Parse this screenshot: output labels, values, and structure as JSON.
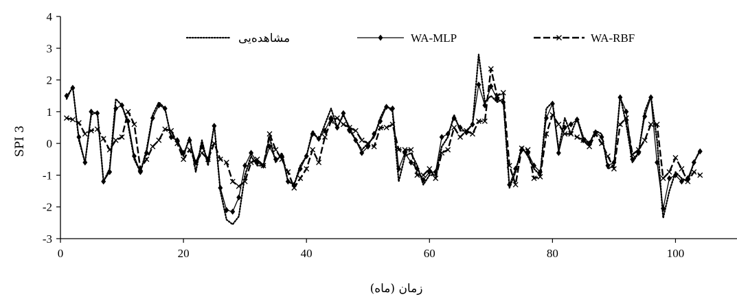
{
  "chart_data": {
    "type": "line",
    "title": "",
    "xlabel": "زمان (ماه)",
    "ylabel": "SPI 3",
    "xlim": [
      0,
      110
    ],
    "ylim": [
      -3,
      4
    ],
    "xticks": [
      0,
      20,
      40,
      60,
      80,
      100
    ],
    "yticks": [
      -3,
      -2,
      -1,
      0,
      1,
      2,
      3,
      4
    ],
    "grid": false,
    "legend_position": "top-center",
    "series": [
      {
        "name": "مشاهده‌یی",
        "style": "dotted",
        "marker": "none",
        "color": "#000000",
        "x": [
          1,
          2,
          3,
          4,
          5,
          6,
          7,
          8,
          9,
          10,
          11,
          12,
          13,
          14,
          15,
          16,
          17,
          18,
          19,
          20,
          21,
          22,
          23,
          24,
          25,
          26,
          27,
          28,
          29,
          30,
          31,
          32,
          33,
          34,
          35,
          36,
          37,
          38,
          39,
          40,
          41,
          42,
          43,
          44,
          45,
          46,
          47,
          48,
          49,
          50,
          51,
          52,
          53,
          54,
          55,
          56,
          57,
          58,
          59,
          60,
          61,
          62,
          63,
          64,
          65,
          66,
          67,
          68,
          69,
          70,
          71,
          72,
          73,
          74,
          75,
          76,
          77,
          78,
          79,
          80,
          81,
          82,
          83,
          84,
          85,
          86,
          87,
          88,
          89,
          90,
          91,
          92,
          93,
          94,
          95,
          96,
          97,
          98,
          99,
          100,
          101,
          102,
          103,
          104
        ],
        "values": [
          1.4,
          1.8,
          0.1,
          -0.6,
          0.9,
          1.0,
          -1.2,
          -0.8,
          1.4,
          1.2,
          0.6,
          -0.5,
          -0.9,
          -0.2,
          0.9,
          1.3,
          1.1,
          0.2,
          0.1,
          -0.4,
          0.2,
          -0.9,
          0.1,
          -0.7,
          0.6,
          -1.5,
          -2.4,
          -2.55,
          -2.3,
          -1.0,
          -0.4,
          -0.7,
          -0.7,
          0.2,
          -0.6,
          -0.3,
          -1.2,
          -1.3,
          -0.7,
          -0.4,
          0.4,
          0.1,
          0.6,
          1.1,
          0.5,
          0.9,
          0.5,
          0.1,
          -0.2,
          0.0,
          0.2,
          0.8,
          1.2,
          1.0,
          -1.2,
          -0.4,
          -0.3,
          -0.7,
          -1.3,
          -1.0,
          -1.0,
          -0.1,
          0.2,
          0.9,
          0.4,
          0.4,
          0.6,
          2.8,
          1.3,
          1.5,
          1.3,
          1.4,
          -1.4,
          -0.9,
          -0.1,
          -0.4,
          -0.8,
          -1.0,
          1.1,
          1.3,
          -0.2,
          0.8,
          0.3,
          0.8,
          0.2,
          0.0,
          0.4,
          0.3,
          -0.8,
          -0.7,
          1.5,
          0.6,
          -0.6,
          -0.3,
          1.0,
          1.5,
          0.1,
          -2.35,
          -1.5,
          -0.9,
          -1.1,
          -1.2,
          -0.6,
          -0.2
        ]
      },
      {
        "name": "WA-MLP",
        "style": "solid",
        "marker": "diamond",
        "color": "#000000",
        "x": [
          1,
          2,
          3,
          4,
          5,
          6,
          7,
          8,
          9,
          10,
          11,
          12,
          13,
          14,
          15,
          16,
          17,
          18,
          19,
          20,
          21,
          22,
          23,
          24,
          25,
          26,
          27,
          28,
          29,
          30,
          31,
          32,
          33,
          34,
          35,
          36,
          37,
          38,
          39,
          40,
          41,
          42,
          43,
          44,
          45,
          46,
          47,
          48,
          49,
          50,
          51,
          52,
          53,
          54,
          55,
          56,
          57,
          58,
          59,
          60,
          61,
          62,
          63,
          64,
          65,
          66,
          67,
          68,
          69,
          70,
          71,
          72,
          73,
          74,
          75,
          76,
          77,
          78,
          79,
          80,
          81,
          82,
          83,
          84,
          85,
          86,
          87,
          88,
          89,
          90,
          91,
          92,
          93,
          94,
          95,
          96,
          97,
          98,
          99,
          100,
          101,
          102,
          103,
          104
        ],
        "values": [
          1.5,
          1.75,
          0.2,
          -0.6,
          1.0,
          0.95,
          -1.2,
          -0.9,
          1.1,
          1.2,
          0.7,
          -0.4,
          -0.9,
          -0.3,
          0.8,
          1.2,
          1.1,
          0.2,
          0.1,
          -0.3,
          0.1,
          -0.6,
          -0.1,
          -0.5,
          0.55,
          -1.4,
          -2.1,
          -2.15,
          -1.7,
          -0.7,
          -0.3,
          -0.6,
          -0.7,
          -0.1,
          -0.5,
          -0.4,
          -1.2,
          -1.3,
          -0.8,
          -0.4,
          0.3,
          0.15,
          0.4,
          0.8,
          0.5,
          0.95,
          0.4,
          0.1,
          -0.3,
          -0.1,
          0.3,
          0.7,
          1.15,
          1.1,
          -0.8,
          -0.3,
          -0.6,
          -0.8,
          -1.15,
          -0.9,
          -0.9,
          0.2,
          0.3,
          0.8,
          0.5,
          0.35,
          0.6,
          1.85,
          1.2,
          1.8,
          1.4,
          1.3,
          -1.3,
          -0.8,
          -0.2,
          -0.3,
          -0.7,
          -0.9,
          0.8,
          1.25,
          -0.3,
          0.5,
          0.6,
          0.75,
          0.1,
          0.0,
          0.35,
          0.2,
          -0.7,
          -0.6,
          1.45,
          1.0,
          -0.5,
          -0.3,
          0.85,
          1.45,
          -0.6,
          -2.05,
          -1.1,
          -1.0,
          -1.2,
          -1.1,
          -0.6,
          -0.25
        ]
      },
      {
        "name": "WA-RBF",
        "style": "dashed",
        "marker": "x",
        "color": "#000000",
        "x": [
          1,
          2,
          3,
          4,
          5,
          6,
          7,
          8,
          9,
          10,
          11,
          12,
          13,
          14,
          15,
          16,
          17,
          18,
          19,
          20,
          21,
          22,
          23,
          24,
          25,
          26,
          27,
          28,
          29,
          30,
          31,
          32,
          33,
          34,
          35,
          36,
          37,
          38,
          39,
          40,
          41,
          42,
          43,
          44,
          45,
          46,
          47,
          48,
          49,
          50,
          51,
          52,
          53,
          54,
          55,
          56,
          57,
          58,
          59,
          60,
          61,
          62,
          63,
          64,
          65,
          66,
          67,
          68,
          69,
          70,
          71,
          72,
          73,
          74,
          75,
          76,
          77,
          78,
          79,
          80,
          81,
          82,
          83,
          84,
          85,
          86,
          87,
          88,
          89,
          90,
          91,
          92,
          93,
          94,
          95,
          96,
          97,
          98,
          99,
          100,
          101,
          102,
          103,
          104
        ],
        "values": [
          0.8,
          0.75,
          0.65,
          0.3,
          0.4,
          0.45,
          0.15,
          -0.2,
          0.1,
          0.2,
          1.0,
          0.6,
          -0.8,
          -0.5,
          -0.1,
          0.1,
          0.45,
          0.4,
          0.0,
          -0.5,
          -0.2,
          -0.6,
          -0.3,
          -0.5,
          0.0,
          -0.5,
          -0.6,
          -1.2,
          -1.35,
          -1.2,
          -0.6,
          -0.5,
          -0.7,
          0.3,
          -0.2,
          -0.5,
          -0.9,
          -1.4,
          -1.1,
          -0.8,
          -0.2,
          -0.6,
          0.2,
          0.7,
          0.8,
          0.6,
          0.5,
          0.4,
          0.1,
          0.0,
          -0.1,
          0.5,
          0.5,
          0.6,
          -0.2,
          -0.2,
          -0.2,
          -1.0,
          -1.0,
          -0.8,
          -1.1,
          -0.3,
          -0.2,
          0.5,
          0.2,
          0.4,
          0.3,
          0.7,
          0.7,
          2.35,
          1.5,
          1.6,
          -0.7,
          -1.3,
          -0.15,
          -0.2,
          -1.1,
          -1.05,
          0.3,
          0.9,
          0.6,
          0.3,
          0.3,
          0.2,
          0.1,
          -0.1,
          0.3,
          0.0,
          -0.4,
          -0.8,
          0.6,
          0.8,
          -0.35,
          -0.2,
          0.1,
          0.6,
          0.6,
          -1.1,
          -0.9,
          -0.45,
          -0.8,
          -1.2,
          -0.9,
          -1.0
        ]
      }
    ]
  }
}
